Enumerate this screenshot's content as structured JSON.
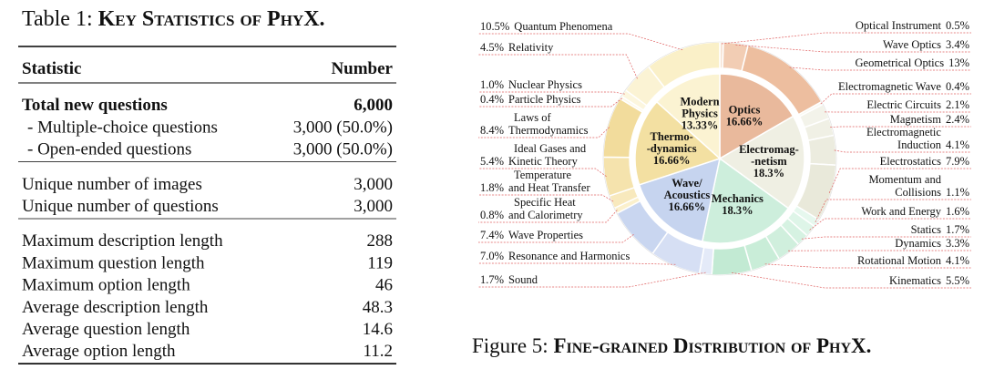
{
  "table": {
    "title_label": "Table 1:",
    "title": "Key Statistics of PhyX.",
    "header": [
      "Statistic",
      "Number"
    ],
    "groups": [
      [
        [
          "Total new questions",
          "6,000"
        ],
        [
          "- Multiple-choice questions",
          "3,000 (50.0%)"
        ],
        [
          "- Open-ended questions",
          "3,000 (50.0%)"
        ]
      ],
      [
        [
          "Unique number of images",
          "3,000"
        ],
        [
          "Unique number of questions",
          "3,000"
        ]
      ],
      [
        [
          "Maximum description length",
          "288"
        ],
        [
          "Maximum question length",
          "119"
        ],
        [
          "Maximum option length",
          "46"
        ],
        [
          "Average description length",
          "48.3"
        ],
        [
          "Average question length",
          "14.6"
        ],
        [
          "Average option length",
          "11.2"
        ]
      ]
    ]
  },
  "figure": {
    "label": "Figure 5:",
    "caption": "Fine-grained Distribution of PhyX."
  },
  "chart_data": {
    "type": "donut",
    "series": [
      {
        "categories": [
          [
            "Optics"
          ],
          [
            "Electromag-",
            "-netism"
          ],
          [
            "Mechanics"
          ],
          [
            "Wave/",
            "Acoustics"
          ],
          [
            "Thermo-",
            "-dynamics"
          ],
          [
            "Modern",
            "Physics"
          ]
        ],
        "values": [
          16.66,
          18.3,
          18.3,
          16.66,
          16.66,
          13.33
        ],
        "value_labels": [
          "16.66%",
          "18.3%",
          "18.3%",
          "16.66%",
          "16.66%",
          "13.33%"
        ],
        "colors": [
          "#e9b99c",
          "#efefe3",
          "#cdeedc",
          "#c6d4ef",
          "#f3e0a2",
          "#fbf3d2"
        ]
      },
      {
        "categories": [
          [
            "Optical Instrument"
          ],
          [
            "Wave Optics"
          ],
          [
            "Geometrical Optics"
          ],
          [
            "Electromagnetic Wave"
          ],
          [
            "Electric Circuits"
          ],
          [
            "Magnetism"
          ],
          [
            "Electromagnetic",
            "Induction"
          ],
          [
            "Electrostatics"
          ],
          [
            "Momentum and",
            "Collisions"
          ],
          [
            "Work and Energy"
          ],
          [
            "Statics"
          ],
          [
            "Dynamics"
          ],
          [
            "Rotational Motion"
          ],
          [
            "Kinematics"
          ],
          [
            "Sound"
          ],
          [
            "Resonance and Harmonics"
          ],
          [
            "Wave Properties"
          ],
          [
            "Specific Heat",
            "and Calorimetry"
          ],
          [
            "Temperature",
            "and Heat Transfer"
          ],
          [
            "Ideal Gases and",
            "Kinetic Theory"
          ],
          [
            "Laws of",
            "Thermodynamics"
          ],
          [
            "Particle Physics"
          ],
          [
            "Nuclear Physics"
          ],
          [
            "Relativity"
          ],
          [
            "Quantum Phenomena"
          ]
        ],
        "values": [
          0.5,
          3.4,
          13,
          0.4,
          2.1,
          2.4,
          4.1,
          7.9,
          1.1,
          1.6,
          1.7,
          3.3,
          4.1,
          5.5,
          1.7,
          7.0,
          7.4,
          0.8,
          1.8,
          5.4,
          8.4,
          0.4,
          1.0,
          4.5,
          10.5
        ],
        "value_labels": [
          "0.5%",
          "3.4%",
          "13%",
          "0.4%",
          "2.1%",
          "2.4%",
          "4.1%",
          "7.9%",
          "1.1%",
          "1.6%",
          "1.7%",
          "3.3%",
          "4.1%",
          "5.5%",
          "1.7%",
          "7.0%",
          "7.4%",
          "0.8%",
          "1.8%",
          "5.4%",
          "8.4%",
          "0.4%",
          "1.0%",
          "4.5%",
          "10.5%"
        ],
        "colors": [
          "#f7e4d6",
          "#f2cdb4",
          "#edbe9f",
          "#f8f8f0",
          "#f3f3ea",
          "#f0f0e5",
          "#ececdf",
          "#e9e9da",
          "#e6f8ee",
          "#def5e8",
          "#d6f2e2",
          "#d0efdd",
          "#c9edd8",
          "#c2ead3",
          "#e4eaf8",
          "#d6dff4",
          "#c9d6f0",
          "#fbf0cc",
          "#f8e9bd",
          "#f5e3ad",
          "#f2dc9c",
          "#fdf9e8",
          "#fcf6de",
          "#fbf3d4",
          "#faf0c8"
        ]
      }
    ]
  }
}
